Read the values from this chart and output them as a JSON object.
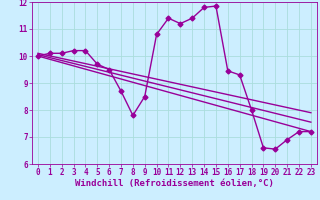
{
  "background_color": "#cceeff",
  "grid_color": "#aadddd",
  "line_color": "#990099",
  "marker": "D",
  "markersize": 2.5,
  "linewidth": 1.0,
  "xlabel": "Windchill (Refroidissement éolien,°C)",
  "xlabel_fontsize": 6.5,
  "tick_fontsize": 5.5,
  "xlim": [
    -0.5,
    23.5
  ],
  "ylim": [
    6,
    12
  ],
  "xticks": [
    0,
    1,
    2,
    3,
    4,
    5,
    6,
    7,
    8,
    9,
    10,
    11,
    12,
    13,
    14,
    15,
    16,
    17,
    18,
    19,
    20,
    21,
    22,
    23
  ],
  "yticks": [
    6,
    7,
    8,
    9,
    10,
    11,
    12
  ],
  "line1_x": [
    0,
    1,
    2,
    3,
    4,
    5,
    6,
    7,
    8,
    9,
    10,
    11,
    12,
    13,
    14,
    15,
    16,
    17,
    18,
    19,
    20,
    21,
    22,
    23
  ],
  "line1_y": [
    10.0,
    10.1,
    10.1,
    10.2,
    10.2,
    9.7,
    9.5,
    8.7,
    7.8,
    8.5,
    10.8,
    11.4,
    11.2,
    11.4,
    11.8,
    11.85,
    9.45,
    9.3,
    8.0,
    6.6,
    6.55,
    6.9,
    7.2,
    7.2
  ],
  "line2_x": [
    0,
    23
  ],
  "line2_y": [
    10.0,
    7.2
  ],
  "line3_x": [
    0,
    23
  ],
  "line3_y": [
    10.05,
    7.55
  ],
  "line4_x": [
    0,
    23
  ],
  "line4_y": [
    10.1,
    7.9
  ]
}
